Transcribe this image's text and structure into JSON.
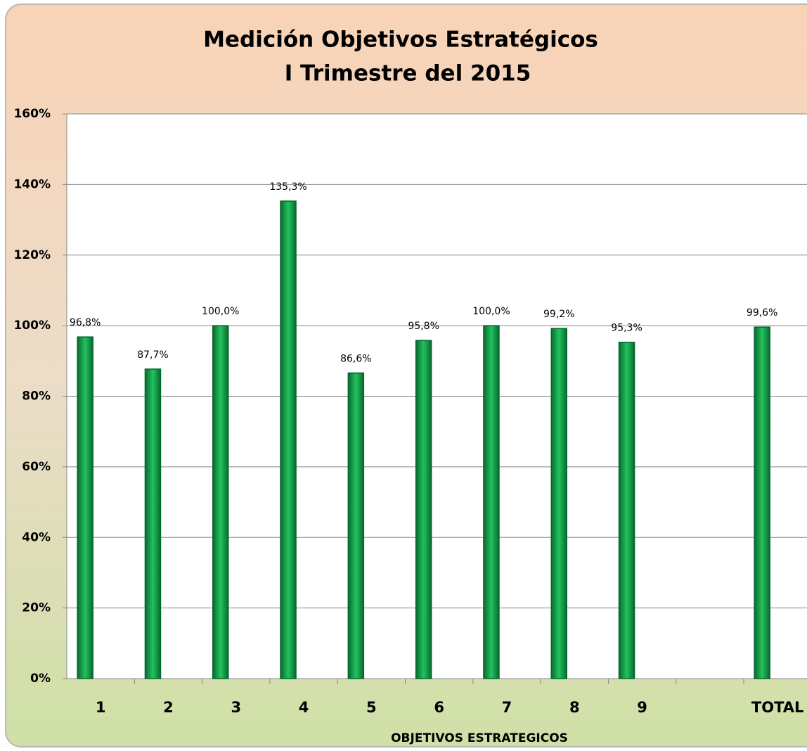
{
  "chart_data": {
    "type": "bar",
    "title": "Medición Objetivos Estratégicos",
    "subtitle": "I Trimestre del 2015",
    "x_label": "OBJETIVOS ESTRATEGICOS",
    "categories": [
      "1",
      "2",
      "3",
      "4",
      "5",
      "6",
      "7",
      "8",
      "9",
      null,
      "TOTAL"
    ],
    "values": [
      96.8,
      87.7,
      100.0,
      135.3,
      86.6,
      95.8,
      100.0,
      99.2,
      95.3,
      null,
      99.6
    ],
    "value_labels": [
      "96,8%",
      "87,7%",
      "100,0%",
      "135,3%",
      "86,6%",
      "95,8%",
      "100,0%",
      "99,2%",
      "95,3%",
      null,
      "99,6%"
    ],
    "color": "#12a04a",
    "ylim": [
      0,
      160
    ],
    "yticks": [
      {
        "value": 0,
        "label": "0%"
      },
      {
        "value": 20,
        "label": "20%"
      },
      {
        "value": 40,
        "label": "40%"
      },
      {
        "value": 60,
        "label": "60%"
      },
      {
        "value": 80,
        "label": "80%"
      },
      {
        "value": 100,
        "label": "100%"
      },
      {
        "value": 120,
        "label": "120%"
      },
      {
        "value": 140,
        "label": "140%"
      },
      {
        "value": 160,
        "label": "160%"
      }
    ],
    "grid": true
  }
}
